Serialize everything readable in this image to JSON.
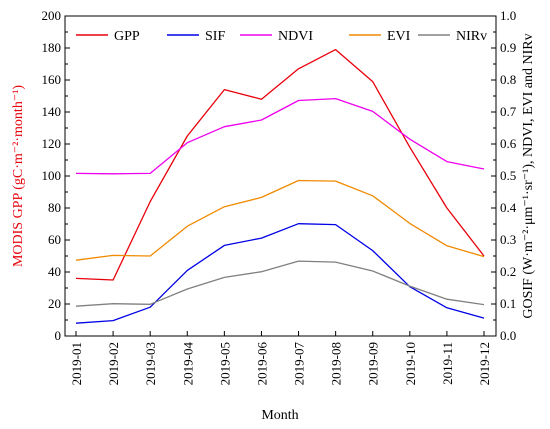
{
  "chart_data": {
    "type": "line",
    "xlabel": "Month",
    "ylabel_left": "MODIS GPP (gC·m⁻²·month⁻¹)",
    "ylabel_right": "GOSIF (W·m⁻²·μm⁻¹·sr⁻¹), NDVI, EVI and NIRv",
    "categories": [
      "2019-01",
      "2019-02",
      "2019-03",
      "2019-04",
      "2019-05",
      "2019-06",
      "2019-07",
      "2019-08",
      "2019-09",
      "2019-10",
      "2019-11",
      "2019-12"
    ],
    "ylim_left": [
      0,
      200
    ],
    "ylim_right": [
      0.0,
      1.0
    ],
    "yticks_left": [
      "0",
      "20",
      "40",
      "60",
      "80",
      "100",
      "120",
      "140",
      "160",
      "180",
      "200"
    ],
    "yticks_right": [
      "0.0",
      "0.1",
      "0.2",
      "0.3",
      "0.4",
      "0.5",
      "0.6",
      "0.7",
      "0.8",
      "0.9",
      "1.0"
    ],
    "left_axis_color": "#e8000b",
    "series": [
      {
        "name": "GPP",
        "axis": "left",
        "color": "#e8000b",
        "values": [
          36,
          35,
          84,
          125,
          154,
          148,
          167,
          179,
          159,
          118,
          80,
          50
        ]
      },
      {
        "name": "SIF",
        "axis": "right",
        "color": "#0000e6",
        "values": [
          0.04,
          0.048,
          0.09,
          0.205,
          0.283,
          0.306,
          0.351,
          0.348,
          0.267,
          0.154,
          0.088,
          0.056
        ]
      },
      {
        "name": "NDVI",
        "axis": "right",
        "color": "#ee00ee",
        "values": [
          0.508,
          0.507,
          0.508,
          0.604,
          0.654,
          0.675,
          0.736,
          0.742,
          0.702,
          0.615,
          0.545,
          0.522
        ]
      },
      {
        "name": "EVI",
        "axis": "right",
        "color": "#f08a00",
        "values": [
          0.237,
          0.252,
          0.25,
          0.343,
          0.404,
          0.433,
          0.486,
          0.484,
          0.438,
          0.352,
          0.282,
          0.248
        ]
      },
      {
        "name": "NIRv",
        "axis": "right",
        "color": "#808080",
        "values": [
          0.093,
          0.101,
          0.099,
          0.147,
          0.183,
          0.201,
          0.234,
          0.231,
          0.203,
          0.156,
          0.115,
          0.098
        ]
      }
    ],
    "legend_position": "top"
  }
}
